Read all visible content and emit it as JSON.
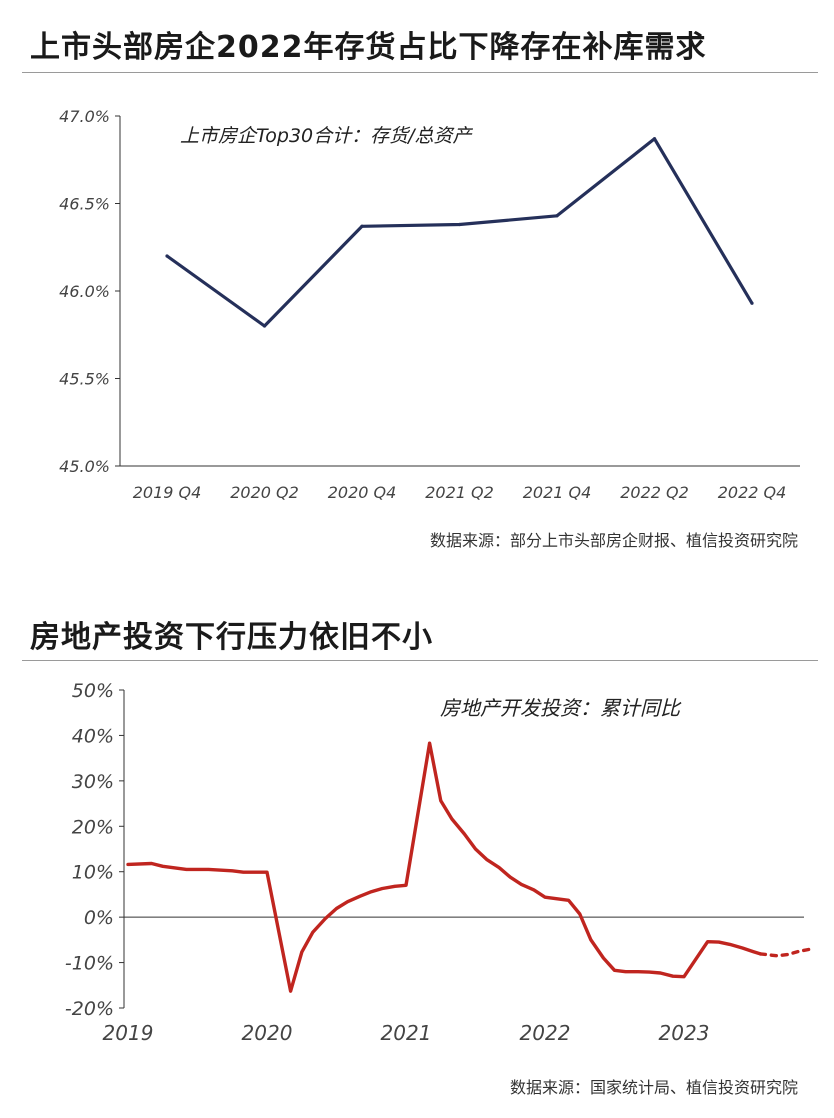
{
  "chart_data": [
    {
      "type": "line",
      "title": "上市头部房企2022年存货占比下降存在补库需求",
      "subtitle": "上市房企Top30合计：存货/总资产",
      "source": "数据来源：部分上市头部房企财报、植信投资研究院",
      "categories": [
        "2019 Q4",
        "2020 Q2",
        "2020 Q4",
        "2021 Q2",
        "2021 Q4",
        "2022 Q2",
        "2022 Q4"
      ],
      "series": [
        {
          "values": [
            46.2,
            45.8,
            46.37,
            46.38,
            46.43,
            46.87,
            45.93
          ]
        }
      ],
      "y_ticks": [
        "45.0%",
        "45.5%",
        "46.0%",
        "46.5%",
        "47.0%"
      ],
      "ylim": [
        45.0,
        47.0
      ],
      "color": "#25305a",
      "grid": false
    },
    {
      "type": "line",
      "title": "房地产投资下行压力依旧不小",
      "subtitle": "房地产开发投资：累计同比",
      "source": "数据来源：国家统计局、植信投资研究院",
      "x_ticks": [
        "2019",
        "2020",
        "2021",
        "2022",
        "2023"
      ],
      "x_tick_positions": [
        2019,
        2020,
        2021,
        2022,
        2023
      ],
      "y_ticks": [
        "-20%",
        "-10%",
        "0%",
        "10%",
        "20%",
        "30%",
        "40%",
        "50%"
      ],
      "ylim": [
        -20,
        50
      ],
      "xlim": [
        2019,
        2023.92
      ],
      "color": "#c0251f",
      "series": [
        {
          "style": "solid",
          "points": [
            [
              2019.0,
              11.6
            ],
            [
              2019.17,
              11.8
            ],
            [
              2019.25,
              11.2
            ],
            [
              2019.42,
              10.5
            ],
            [
              2019.58,
              10.5
            ],
            [
              2019.75,
              10.2
            ],
            [
              2019.83,
              9.9
            ],
            [
              2020.0,
              9.9
            ],
            [
              2020.17,
              -16.3
            ],
            [
              2020.25,
              -7.7
            ],
            [
              2020.33,
              -3.3
            ],
            [
              2020.42,
              -0.3
            ],
            [
              2020.5,
              1.9
            ],
            [
              2020.58,
              3.4
            ],
            [
              2020.67,
              4.6
            ],
            [
              2020.75,
              5.6
            ],
            [
              2020.83,
              6.3
            ],
            [
              2020.92,
              6.8
            ],
            [
              2021.0,
              7.0
            ],
            [
              2021.17,
              38.3
            ],
            [
              2021.25,
              25.6
            ],
            [
              2021.33,
              21.6
            ],
            [
              2021.42,
              18.3
            ],
            [
              2021.5,
              15.0
            ],
            [
              2021.58,
              12.7
            ],
            [
              2021.67,
              10.9
            ],
            [
              2021.75,
              8.8
            ],
            [
              2021.83,
              7.2
            ],
            [
              2021.92,
              6.0
            ],
            [
              2022.0,
              4.4
            ],
            [
              2022.17,
              3.7
            ],
            [
              2022.25,
              0.7
            ],
            [
              2022.33,
              -5.0
            ],
            [
              2022.42,
              -9.0
            ],
            [
              2022.5,
              -11.7
            ],
            [
              2022.58,
              -12.0
            ],
            [
              2022.67,
              -12.0
            ],
            [
              2022.75,
              -12.1
            ],
            [
              2022.83,
              -12.3
            ],
            [
              2022.92,
              -13.0
            ],
            [
              2023.0,
              -13.1
            ],
            [
              2023.17,
              -5.4
            ],
            [
              2023.25,
              -5.5
            ],
            [
              2023.33,
              -6.0
            ],
            [
              2023.42,
              -6.8
            ],
            [
              2023.5,
              -7.6
            ],
            [
              2023.55,
              -8.1
            ]
          ]
        },
        {
          "style": "dashed",
          "points": [
            [
              2023.55,
              -8.1
            ],
            [
              2023.67,
              -8.5
            ],
            [
              2023.75,
              -8.2
            ],
            [
              2023.83,
              -7.5
            ],
            [
              2023.92,
              -7.0
            ]
          ]
        }
      ]
    }
  ]
}
